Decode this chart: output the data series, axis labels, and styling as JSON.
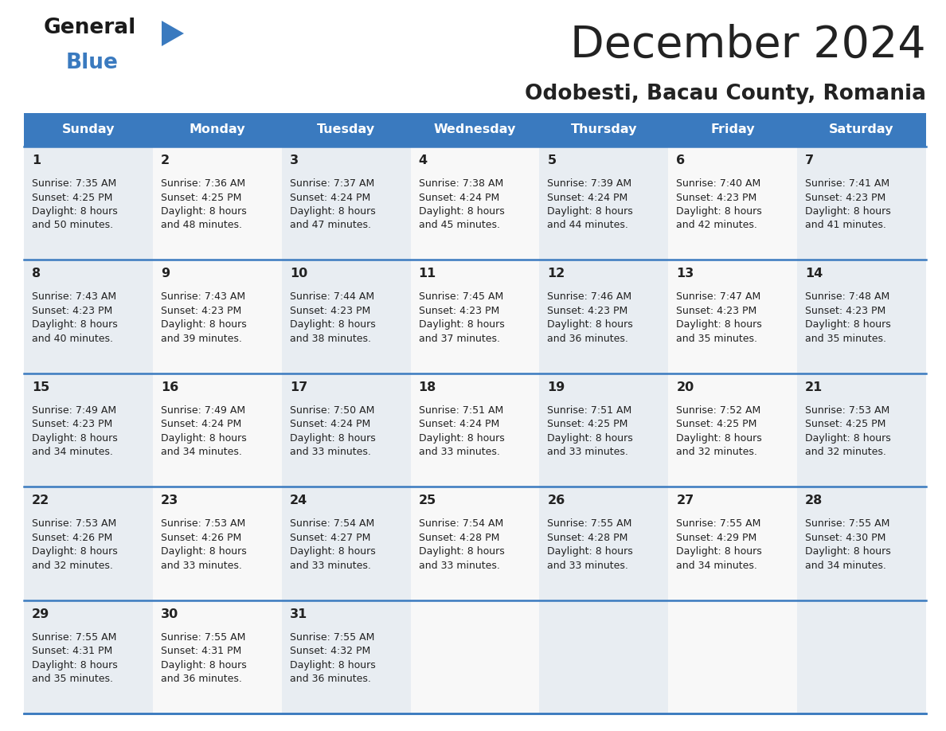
{
  "title": "December 2024",
  "subtitle": "Odobesti, Bacau County, Romania",
  "header_color": "#3a7abf",
  "header_text_color": "#ffffff",
  "cell_bg_light": "#e8edf2",
  "cell_bg_white": "#f8f8f8",
  "border_color": "#3a7abf",
  "text_color": "#222222",
  "days_of_week": [
    "Sunday",
    "Monday",
    "Tuesday",
    "Wednesday",
    "Thursday",
    "Friday",
    "Saturday"
  ],
  "weeks": [
    [
      {
        "day": 1,
        "sunrise": "7:35 AM",
        "sunset": "4:25 PM",
        "daylight": "8 hours and 50 minutes."
      },
      {
        "day": 2,
        "sunrise": "7:36 AM",
        "sunset": "4:25 PM",
        "daylight": "8 hours and 48 minutes."
      },
      {
        "day": 3,
        "sunrise": "7:37 AM",
        "sunset": "4:24 PM",
        "daylight": "8 hours and 47 minutes."
      },
      {
        "day": 4,
        "sunrise": "7:38 AM",
        "sunset": "4:24 PM",
        "daylight": "8 hours and 45 minutes."
      },
      {
        "day": 5,
        "sunrise": "7:39 AM",
        "sunset": "4:24 PM",
        "daylight": "8 hours and 44 minutes."
      },
      {
        "day": 6,
        "sunrise": "7:40 AM",
        "sunset": "4:23 PM",
        "daylight": "8 hours and 42 minutes."
      },
      {
        "day": 7,
        "sunrise": "7:41 AM",
        "sunset": "4:23 PM",
        "daylight": "8 hours and 41 minutes."
      }
    ],
    [
      {
        "day": 8,
        "sunrise": "7:43 AM",
        "sunset": "4:23 PM",
        "daylight": "8 hours and 40 minutes."
      },
      {
        "day": 9,
        "sunrise": "7:43 AM",
        "sunset": "4:23 PM",
        "daylight": "8 hours and 39 minutes."
      },
      {
        "day": 10,
        "sunrise": "7:44 AM",
        "sunset": "4:23 PM",
        "daylight": "8 hours and 38 minutes."
      },
      {
        "day": 11,
        "sunrise": "7:45 AM",
        "sunset": "4:23 PM",
        "daylight": "8 hours and 37 minutes."
      },
      {
        "day": 12,
        "sunrise": "7:46 AM",
        "sunset": "4:23 PM",
        "daylight": "8 hours and 36 minutes."
      },
      {
        "day": 13,
        "sunrise": "7:47 AM",
        "sunset": "4:23 PM",
        "daylight": "8 hours and 35 minutes."
      },
      {
        "day": 14,
        "sunrise": "7:48 AM",
        "sunset": "4:23 PM",
        "daylight": "8 hours and 35 minutes."
      }
    ],
    [
      {
        "day": 15,
        "sunrise": "7:49 AM",
        "sunset": "4:23 PM",
        "daylight": "8 hours and 34 minutes."
      },
      {
        "day": 16,
        "sunrise": "7:49 AM",
        "sunset": "4:24 PM",
        "daylight": "8 hours and 34 minutes."
      },
      {
        "day": 17,
        "sunrise": "7:50 AM",
        "sunset": "4:24 PM",
        "daylight": "8 hours and 33 minutes."
      },
      {
        "day": 18,
        "sunrise": "7:51 AM",
        "sunset": "4:24 PM",
        "daylight": "8 hours and 33 minutes."
      },
      {
        "day": 19,
        "sunrise": "7:51 AM",
        "sunset": "4:25 PM",
        "daylight": "8 hours and 33 minutes."
      },
      {
        "day": 20,
        "sunrise": "7:52 AM",
        "sunset": "4:25 PM",
        "daylight": "8 hours and 32 minutes."
      },
      {
        "day": 21,
        "sunrise": "7:53 AM",
        "sunset": "4:25 PM",
        "daylight": "8 hours and 32 minutes."
      }
    ],
    [
      {
        "day": 22,
        "sunrise": "7:53 AM",
        "sunset": "4:26 PM",
        "daylight": "8 hours and 32 minutes."
      },
      {
        "day": 23,
        "sunrise": "7:53 AM",
        "sunset": "4:26 PM",
        "daylight": "8 hours and 33 minutes."
      },
      {
        "day": 24,
        "sunrise": "7:54 AM",
        "sunset": "4:27 PM",
        "daylight": "8 hours and 33 minutes."
      },
      {
        "day": 25,
        "sunrise": "7:54 AM",
        "sunset": "4:28 PM",
        "daylight": "8 hours and 33 minutes."
      },
      {
        "day": 26,
        "sunrise": "7:55 AM",
        "sunset": "4:28 PM",
        "daylight": "8 hours and 33 minutes."
      },
      {
        "day": 27,
        "sunrise": "7:55 AM",
        "sunset": "4:29 PM",
        "daylight": "8 hours and 34 minutes."
      },
      {
        "day": 28,
        "sunrise": "7:55 AM",
        "sunset": "4:30 PM",
        "daylight": "8 hours and 34 minutes."
      }
    ],
    [
      {
        "day": 29,
        "sunrise": "7:55 AM",
        "sunset": "4:31 PM",
        "daylight": "8 hours and 35 minutes."
      },
      {
        "day": 30,
        "sunrise": "7:55 AM",
        "sunset": "4:31 PM",
        "daylight": "8 hours and 36 minutes."
      },
      {
        "day": 31,
        "sunrise": "7:55 AM",
        "sunset": "4:32 PM",
        "daylight": "8 hours and 36 minutes."
      },
      null,
      null,
      null,
      null
    ]
  ],
  "logo_general_color": "#1a1a1a",
  "logo_blue_color": "#3a7abf",
  "logo_triangle_color": "#3a7abf",
  "fig_width": 11.88,
  "fig_height": 9.18,
  "dpi": 100
}
